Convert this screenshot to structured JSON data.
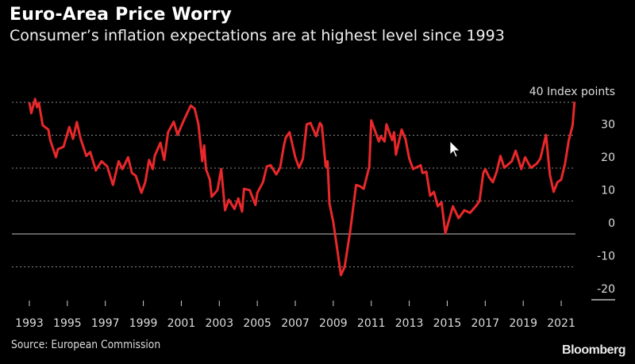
{
  "header": {
    "title": "Euro-Area Price Worry",
    "subtitle": "Consumer’s inflation expectations are at highest level since 1993"
  },
  "footer": {
    "source": "Source: European Commission",
    "logo": "Bloomberg"
  },
  "chart_data": {
    "type": "line",
    "title": "Euro-Area Price Worry",
    "subtitle": "Consumer’s inflation expectations are at highest level since 1993",
    "ylabel": "Index points",
    "unit_label": "40 Index points",
    "ylim": [
      -20,
      40
    ],
    "xlim": [
      1993,
      2022
    ],
    "yticks": [
      40,
      30,
      20,
      10,
      0,
      -10,
      -20
    ],
    "ytick_labels": [
      "40 Index points",
      "30",
      "20",
      "10",
      "0",
      "-10",
      "-20"
    ],
    "xticks": [
      "1993",
      "1995",
      "1997",
      "1999",
      "2001",
      "2003",
      "2005",
      "2007",
      "2009",
      "2011",
      "2013",
      "2015",
      "2017",
      "2019",
      "2021"
    ],
    "grid": true,
    "line_color": "#e8282b",
    "background": "#000000",
    "series": [
      {
        "x": [
          1993.0,
          1993.1,
          1993.3,
          1993.4,
          1993.5,
          1993.7,
          1994.0,
          1994.1,
          1994.4,
          1994.5,
          1994.8,
          1995.1,
          1995.3,
          1995.5,
          1995.7,
          1996.0,
          1996.2,
          1996.5,
          1996.8,
          1997.1,
          1997.4,
          1997.7,
          1997.9,
          1998.2,
          1998.4,
          1998.6,
          1998.9,
          1999.1,
          1999.3,
          1999.5,
          1999.6,
          1999.9,
          2000.1,
          2000.3,
          2000.6,
          2000.8,
          2001.1,
          2001.3,
          2001.5,
          2001.7,
          2001.9,
          2002.1,
          2002.2,
          2002.3,
          2002.5,
          2002.6,
          2002.9,
          2003.1,
          2003.3,
          2003.5,
          2003.8,
          2004.0,
          2004.2,
          2004.3,
          2004.6,
          2004.9,
          2005.0,
          2005.3,
          2005.5,
          2005.7,
          2006.0,
          2006.2,
          2006.4,
          2006.5,
          2006.7,
          2007.0,
          2007.2,
          2007.4,
          2007.6,
          2007.8,
          2008.1,
          2008.3,
          2008.4,
          2008.6,
          2008.7,
          2008.8,
          2009.0,
          2009.2,
          2009.4,
          2009.6,
          2009.9,
          2010.2,
          2010.4,
          2010.6,
          2010.9,
          2011.0,
          2011.4,
          2011.5,
          2011.7,
          2011.8,
          2012.1,
          2012.2,
          2012.3,
          2012.6,
          2012.8,
          2013.0,
          2013.2,
          2013.6,
          2013.7,
          2013.9,
          2014.1,
          2014.3,
          2014.5,
          2014.7,
          2014.9,
          2015.1,
          2015.3,
          2015.6,
          2015.9,
          2016.2,
          2016.5,
          2016.7,
          2016.9,
          2017.0,
          2017.2,
          2017.4,
          2017.6,
          2017.8,
          2018.0,
          2018.4,
          2018.6,
          2018.9,
          2019.1,
          2019.4,
          2019.7,
          2019.9,
          2020.2,
          2020.4,
          2020.6,
          2020.8,
          2021.0,
          2021.2,
          2021.4,
          2021.6,
          2021.7
        ],
        "y": [
          40,
          36.7,
          41,
          38.5,
          39.8,
          33,
          31.7,
          28.5,
          23.3,
          25.7,
          26.5,
          32.5,
          28.9,
          34,
          28.9,
          23.7,
          24.9,
          19.3,
          22.1,
          20.5,
          14.9,
          22.1,
          19.7,
          23.3,
          18.5,
          17.7,
          12.5,
          15.7,
          22.5,
          19.7,
          23.7,
          27.7,
          22.5,
          30.9,
          34.1,
          30.1,
          34.1,
          36.6,
          39,
          38.1,
          33.3,
          22.1,
          26.9,
          19.7,
          16.5,
          11.3,
          13.3,
          19.7,
          7.2,
          10.4,
          7.6,
          10.8,
          6.8,
          13.7,
          13.3,
          8.8,
          12.5,
          15.7,
          20.5,
          20.9,
          18.1,
          20.1,
          26.9,
          29.3,
          30.9,
          23.3,
          20.1,
          22.9,
          33.3,
          33.7,
          29.7,
          33.7,
          32.9,
          20.5,
          22.1,
          9.2,
          3.6,
          -4.4,
          -12.5,
          -10,
          1.2,
          14.9,
          14.5,
          13.7,
          20.5,
          34.5,
          28.1,
          29.7,
          28.1,
          33.3,
          28.5,
          30.9,
          24.1,
          31.7,
          28.9,
          22.9,
          19.7,
          20.9,
          18.5,
          18.9,
          11.6,
          12.8,
          8.4,
          9.6,
          0.2,
          4.4,
          8.4,
          4.8,
          7.2,
          6.4,
          8.4,
          10,
          18.5,
          19.7,
          17.3,
          15.7,
          18.9,
          23.7,
          20.1,
          22.1,
          25.3,
          19.7,
          23.3,
          20.1,
          21.3,
          22.9,
          30.1,
          18.1,
          12.8,
          15.7,
          16.5,
          21.3,
          28.5,
          33,
          40.2
        ]
      }
    ]
  }
}
